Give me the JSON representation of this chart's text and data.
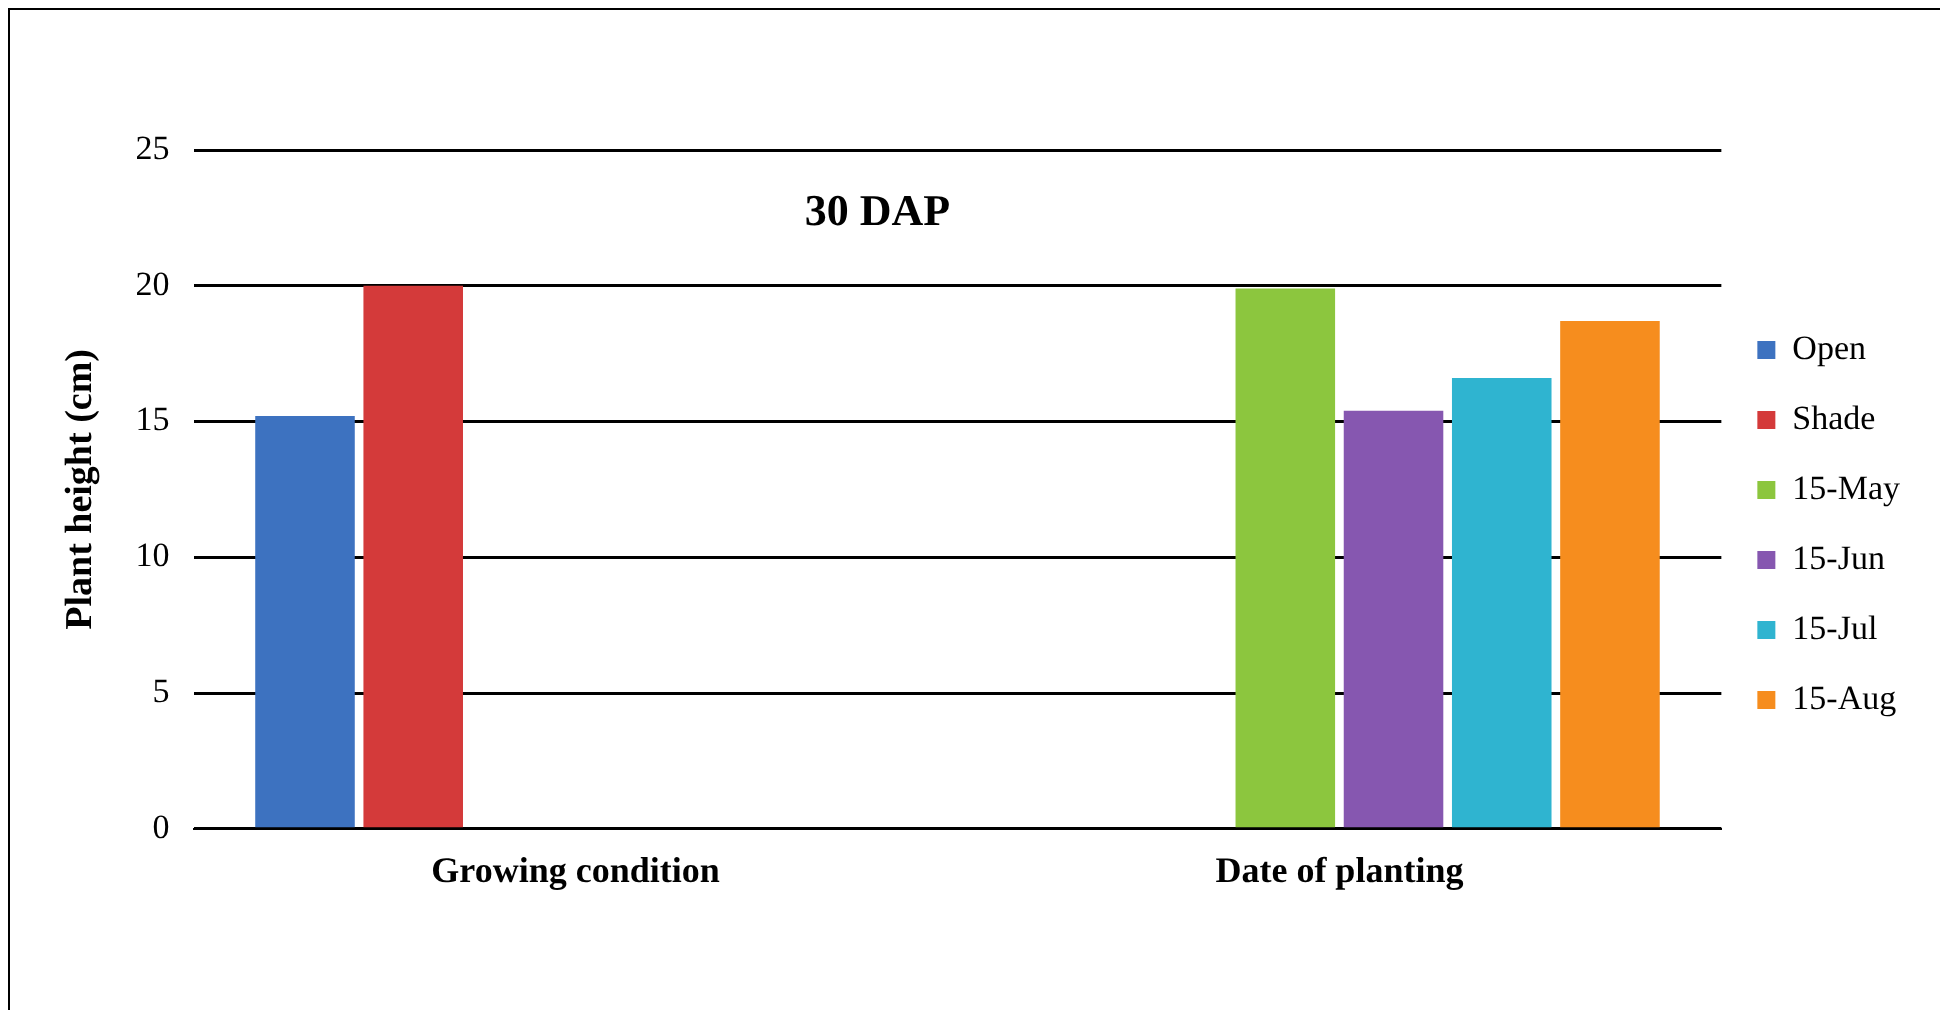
{
  "chart_data": {
    "type": "bar",
    "title": "30 DAP",
    "ylabel": "Plant height (cm)",
    "categories": [
      "Growing condition",
      "Date of planting"
    ],
    "series": [
      {
        "name": "Open",
        "color": "#3d72c0",
        "values": [
          15.2,
          null
        ]
      },
      {
        "name": "Shade",
        "color": "#d43a3a",
        "values": [
          20.0,
          null
        ]
      },
      {
        "name": "15-May",
        "color": "#8cc63e",
        "values": [
          null,
          19.9
        ]
      },
      {
        "name": "15-Jun",
        "color": "#8657b0",
        "values": [
          null,
          15.4
        ]
      },
      {
        "name": "15-Jul",
        "color": "#2fb4d0",
        "values": [
          null,
          16.6
        ]
      },
      {
        "name": "15-Aug",
        "color": "#f68d1e",
        "values": [
          null,
          18.7
        ]
      }
    ],
    "ylim": [
      0,
      25
    ],
    "yticks": [
      0,
      5,
      10,
      15,
      20,
      25
    ],
    "grid": "y",
    "legend": "right"
  }
}
